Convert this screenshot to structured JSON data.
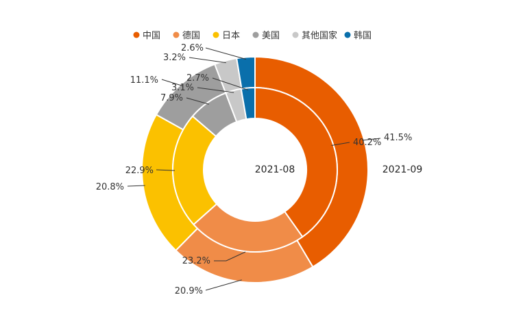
{
  "chart_data": {
    "type": "pie",
    "legend_position": "top",
    "categories": [
      "中国",
      "德国",
      "日本",
      "美国",
      "其他国家",
      "韩国"
    ],
    "colors": [
      "#e85d00",
      "#f08c48",
      "#fbc100",
      "#9e9e9e",
      "#c8c8c8",
      "#0a6fab"
    ],
    "series": [
      {
        "ring": "inner",
        "label": "2021-08",
        "values": [
          40.2,
          23.2,
          22.9,
          7.9,
          3.1,
          2.7
        ],
        "value_labels": [
          "40.2%",
          "23.2%",
          "22.9%",
          "7.9%",
          "3.1%",
          "2.7%"
        ]
      },
      {
        "ring": "outer",
        "label": "2021-09",
        "values": [
          41.5,
          20.9,
          20.8,
          11.1,
          3.2,
          2.6
        ],
        "value_labels": [
          "41.5%",
          "20.9%",
          "20.8%",
          "11.1%",
          "3.2%",
          "2.6%"
        ]
      }
    ]
  }
}
